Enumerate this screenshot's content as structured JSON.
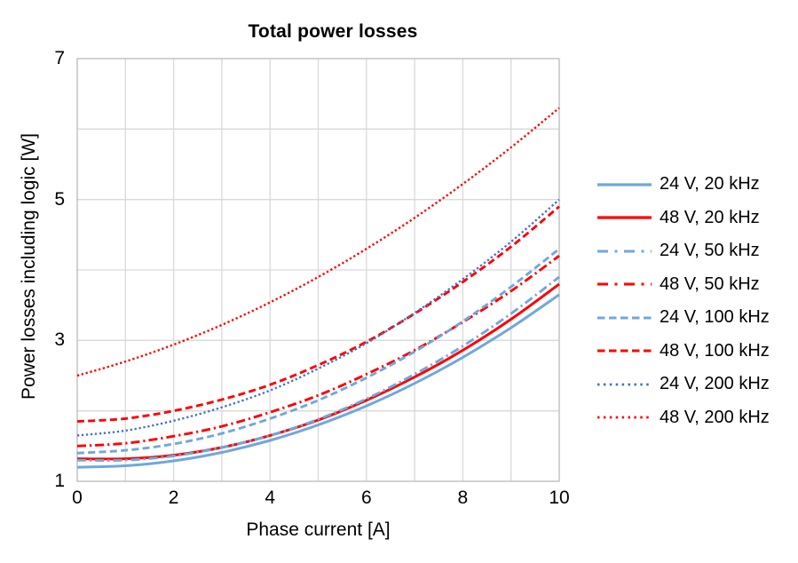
{
  "chart_data": {
    "type": "line",
    "title": "Total power losses",
    "xlabel": "Phase current [A]",
    "ylabel": "Power losses including logic [W]",
    "xlim": [
      0,
      10
    ],
    "ylim": [
      1,
      7
    ],
    "x_ticks": [
      0,
      2,
      4,
      6,
      8,
      10
    ],
    "y_ticks": [
      7,
      5,
      3,
      1
    ],
    "x_gridline_step": 1,
    "y_gridline_step": 1,
    "grid": true,
    "legend_position": "right",
    "x": [
      0,
      1,
      2,
      3,
      4,
      5,
      6,
      7,
      8,
      9,
      10
    ],
    "series": [
      {
        "name": "24 V, 20 kHz",
        "voltage": "24 V",
        "frequency": "20 kHz",
        "color": "#6FA8DC",
        "line_style": "solid",
        "values": [
          1.2,
          1.22,
          1.29,
          1.41,
          1.58,
          1.8,
          2.07,
          2.39,
          2.76,
          3.18,
          3.65
        ]
      },
      {
        "name": "48 V, 20 kHz",
        "voltage": "48 V",
        "frequency": "20 kHz",
        "color": "#FF0000",
        "line_style": "solid",
        "values": [
          1.32,
          1.32,
          1.37,
          1.48,
          1.65,
          1.87,
          2.15,
          2.48,
          2.86,
          3.3,
          3.8
        ]
      },
      {
        "name": "24 V, 50 kHz",
        "voltage": "24 V",
        "frequency": "50 kHz",
        "color": "#6FA8DC",
        "line_style": "dash-dot",
        "values": [
          1.3,
          1.3,
          1.36,
          1.48,
          1.65,
          1.88,
          2.17,
          2.52,
          2.92,
          3.38,
          3.9
        ]
      },
      {
        "name": "48 V, 50 kHz",
        "voltage": "48 V",
        "frequency": "50 kHz",
        "color": "#FF0000",
        "line_style": "dash-dot",
        "values": [
          1.5,
          1.54,
          1.64,
          1.78,
          1.98,
          2.22,
          2.52,
          2.86,
          3.26,
          3.7,
          4.2
        ]
      },
      {
        "name": "24 V, 100 kHz",
        "voltage": "24 V",
        "frequency": "100 kHz",
        "color": "#6FA8DC",
        "line_style": "dashed",
        "values": [
          1.4,
          1.44,
          1.53,
          1.68,
          1.89,
          2.15,
          2.47,
          2.84,
          3.27,
          3.76,
          4.3
        ]
      },
      {
        "name": "48 V, 100 kHz",
        "voltage": "48 V",
        "frequency": "100 kHz",
        "color": "#FF0000",
        "line_style": "dashed",
        "values": [
          1.85,
          1.89,
          2.0,
          2.16,
          2.37,
          2.65,
          2.98,
          3.38,
          3.83,
          4.33,
          4.9
        ]
      },
      {
        "name": "24 V, 200 kHz",
        "voltage": "24 V",
        "frequency": "200 kHz",
        "color": "#4472C4",
        "line_style": "dotted",
        "values": [
          1.65,
          1.72,
          1.86,
          2.05,
          2.29,
          2.6,
          2.96,
          3.39,
          3.87,
          4.4,
          5.0
        ]
      },
      {
        "name": "48 V, 200 kHz",
        "voltage": "48 V",
        "frequency": "200 kHz",
        "color": "#FF0000",
        "line_style": "dotted",
        "values": [
          2.5,
          2.7,
          2.94,
          3.22,
          3.54,
          3.9,
          4.3,
          4.74,
          5.22,
          5.74,
          6.3
        ]
      }
    ]
  },
  "colors": {
    "background": "#FFFFFF",
    "gridline": "#D9D9D9",
    "plot_border": "#BFBFBF",
    "text": "#000000",
    "blue_light": "#6FA8DC",
    "blue_dark": "#4472C4",
    "red": "#FF0000"
  }
}
